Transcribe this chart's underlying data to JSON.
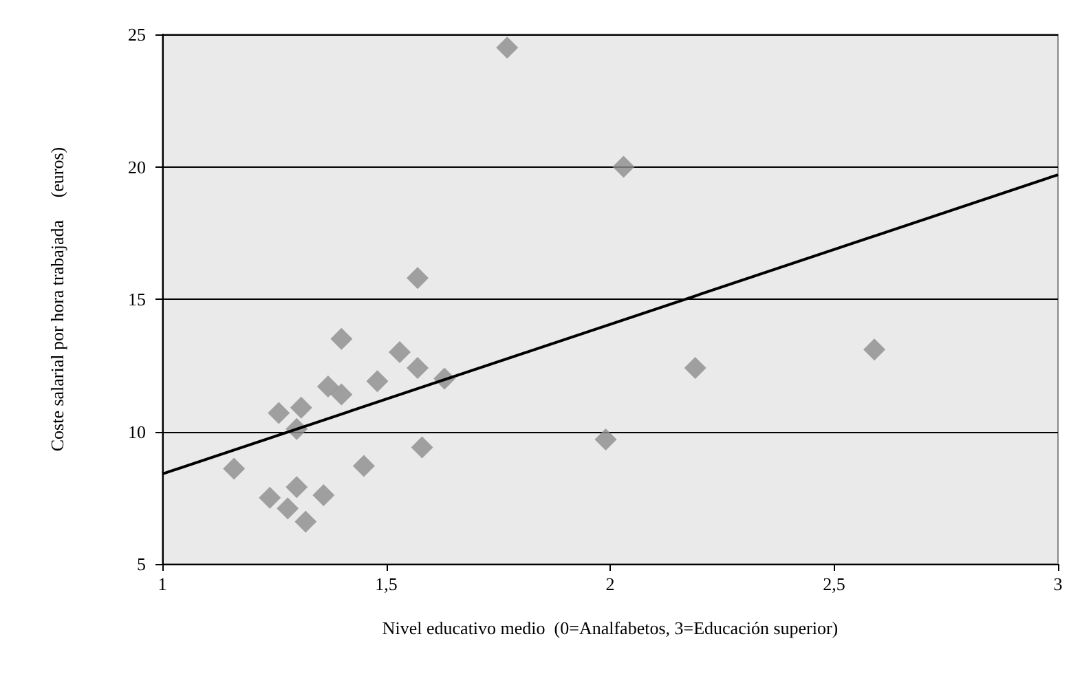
{
  "chart_data": {
    "type": "scatter",
    "xlabel": "Nivel educativo medio  (0=Analfabetos, 3=Educación superior)",
    "ylabel": "Coste salarial por hora trabajada     (euros)",
    "xlim": [
      1,
      3
    ],
    "xticks": [
      1,
      {
        "value": 1.5,
        "label": "1,5"
      },
      2,
      {
        "value": 2.5,
        "label": "2,5"
      },
      3
    ],
    "ylim": [
      5,
      25
    ],
    "yticks": [
      5,
      10,
      15,
      20,
      25
    ],
    "grid": "y",
    "series": [
      {
        "marker": "diamond",
        "color": "#8c8c8c",
        "x": [
          1.16,
          1.24,
          1.26,
          1.28,
          1.3,
          1.3,
          1.31,
          1.32,
          1.36,
          1.37,
          1.4,
          1.4,
          1.45,
          1.48,
          1.53,
          1.57,
          1.57,
          1.58,
          1.63,
          1.77,
          1.99,
          2.03,
          2.19,
          2.59
        ],
        "values": [
          8.6,
          7.5,
          10.7,
          7.1,
          10.1,
          7.9,
          10.9,
          6.6,
          7.6,
          11.7,
          11.4,
          13.5,
          8.7,
          11.9,
          13.0,
          12.4,
          15.8,
          9.4,
          12.0,
          24.5,
          9.7,
          20.0,
          12.4,
          13.1
        ]
      },
      {
        "type": "line",
        "marker": "none",
        "color": "#000000",
        "x": [
          1,
          3
        ],
        "values": [
          8.4,
          19.7
        ]
      }
    ]
  }
}
